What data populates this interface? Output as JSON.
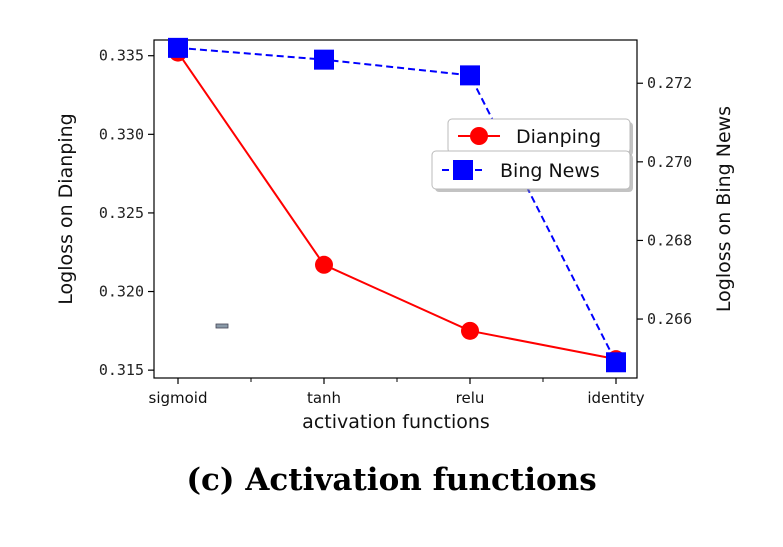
{
  "caption": "(c) Activation functions",
  "chart_data": {
    "type": "line",
    "categories": [
      "sigmoid",
      "tanh",
      "relu",
      "identity"
    ],
    "xlabel": "activation functions",
    "ylabel_left": "Logloss on Dianping",
    "ylabel_right": "Logloss on Bing News",
    "ylim_left": [
      0.3145,
      0.336
    ],
    "ylim_right": [
      0.2645,
      0.2731
    ],
    "yticks_left": [
      "0.315",
      "0.320",
      "0.325",
      "0.330",
      "0.335"
    ],
    "yticks_right": [
      "0.266",
      "0.268",
      "0.270",
      "0.272"
    ],
    "grid": false,
    "legend_position": "right",
    "series": [
      {
        "name": "Dianping",
        "axis": "left",
        "color": "#ff0000",
        "marker": "circle",
        "line_style": "solid",
        "values": [
          0.3352,
          0.3217,
          0.3175,
          0.3157
        ]
      },
      {
        "name": "Bing News",
        "axis": "right",
        "color": "#0000ff",
        "marker": "square",
        "line_style": "dashed",
        "values": [
          0.2729,
          0.2726,
          0.2722,
          0.2649
        ]
      }
    ]
  }
}
